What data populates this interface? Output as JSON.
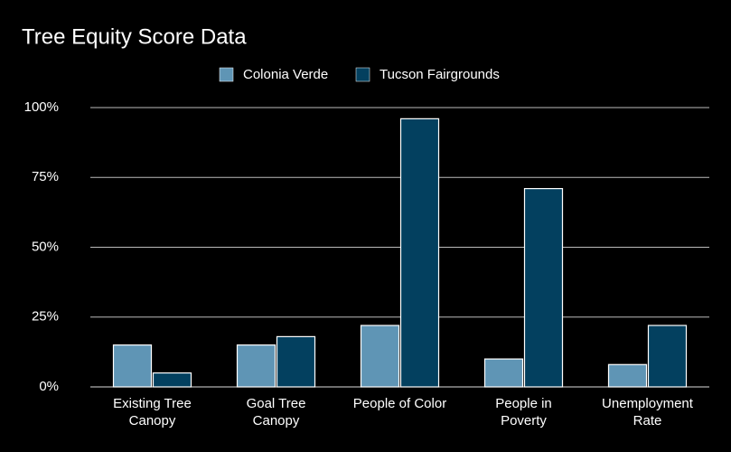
{
  "chart_data": {
    "type": "bar",
    "title": "Tree Equity Score Data",
    "categories": [
      "Existing Tree\nCanopy",
      "Goal Tree\nCanopy",
      "People of Color",
      "People in\nPoverty",
      "Unemployment\nRate"
    ],
    "series": [
      {
        "name": "Colonia Verde",
        "color": "#5f95b5",
        "values": [
          15,
          15,
          22,
          10,
          8
        ]
      },
      {
        "name": "Tucson Fairgrounds",
        "color": "#03405f",
        "values": [
          5,
          18,
          96,
          71,
          22
        ]
      }
    ],
    "ylim": [
      0,
      100
    ],
    "yticks": [
      {
        "value": 0,
        "label": "0%"
      },
      {
        "value": 25,
        "label": "25%"
      },
      {
        "value": 50,
        "label": "50%"
      },
      {
        "value": 75,
        "label": "75%"
      },
      {
        "value": 100,
        "label": "100%"
      }
    ],
    "grid": true,
    "legend": "top"
  }
}
